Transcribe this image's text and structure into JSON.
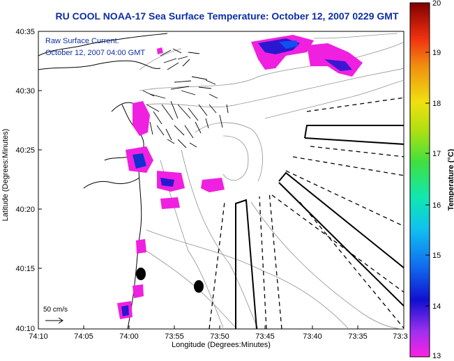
{
  "title": {
    "part1": "RU COOL  NOAA-17  Sea Surface Temperature:  October 12, 2007 0229 GMT"
  },
  "annotation": {
    "line1": "Raw Surface Current:",
    "line2": "October 12, 2007 04:00 GMT"
  },
  "axes": {
    "ylabel": "Latitude (Degrees:Minutes)",
    "xlabel": "Longitude (Degrees:Minutes)",
    "yticks": [
      "40:35",
      "40:30",
      "40:25",
      "40:20",
      "40:15",
      "40:10"
    ],
    "xticks": [
      "74:10",
      "74:05",
      "74:00",
      "73:55",
      "73:50",
      "73:45",
      "73:40",
      "73:35",
      "73:3"
    ]
  },
  "scale": {
    "label": "50 cm/s"
  },
  "colorbar": {
    "title": "Temperature (°C)",
    "ticks": [
      "20",
      "19",
      "18",
      "17",
      "16",
      "15",
      "14",
      "13"
    ],
    "colors": [
      "#f01ad6",
      "#b040e6",
      "#3a18d8",
      "#1060f0",
      "#10b0f0",
      "#10e0c0",
      "#30e060",
      "#a0e020",
      "#f0e010",
      "#f0a010",
      "#f04010",
      "#c00010",
      "#800000"
    ]
  },
  "chart_data": {
    "type": "map",
    "title": "RU COOL  NOAA-17  Sea Surface Temperature:  October 12, 2007 0229 GMT",
    "xlabel": "Longitude (Degrees:Minutes)",
    "ylabel": "Latitude (Degrees:Minutes)",
    "colorbar_range": [
      13,
      20
    ],
    "colorbar_unit": "°C"
  }
}
